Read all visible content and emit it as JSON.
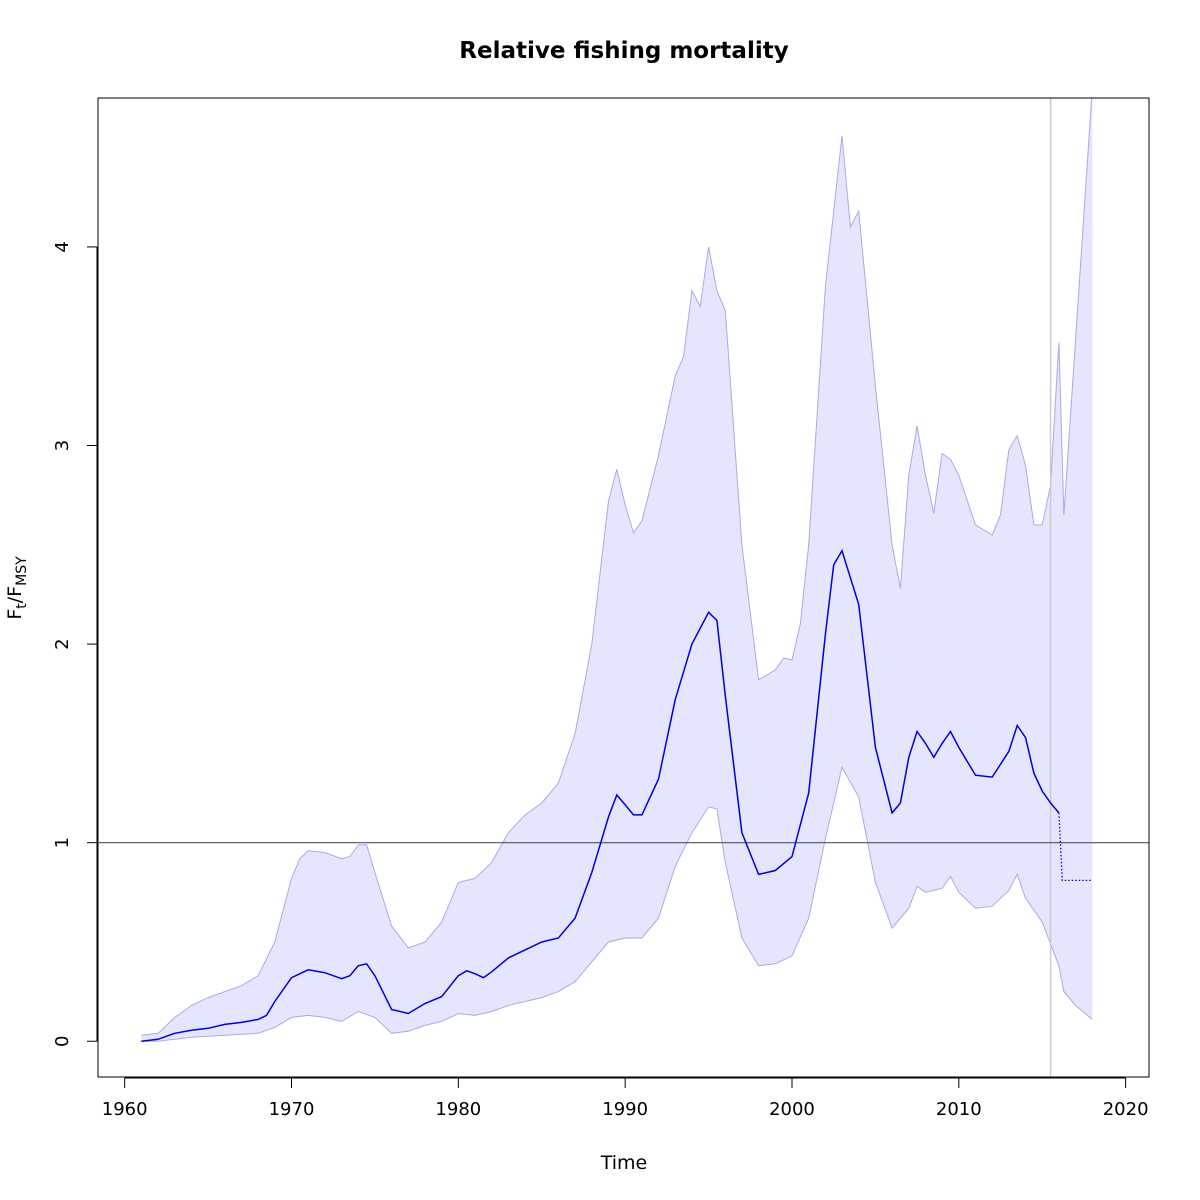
{
  "chart_data": {
    "type": "line",
    "title": "Relative fishing mortality",
    "xlabel": "Time",
    "ylabel": {
      "main": "F",
      "sub1": "t",
      "sep": "/F",
      "sub2": "MSY"
    },
    "xlim": [
      1958.4,
      2021.4
    ],
    "ylim": [
      -0.18,
      4.75
    ],
    "xticks": [
      1960,
      1970,
      1980,
      1990,
      2000,
      2010,
      2020
    ],
    "yticks": [
      0,
      1,
      2,
      3,
      4
    ],
    "reference_line_y": 1,
    "vertical_line_x": 2015.5,
    "colors": {
      "line": "#0000dd",
      "band": "#e5e5ff",
      "band_edge": "#a9a9e8",
      "ref_line": "#555555",
      "vline": "#cccccc"
    },
    "series": [
      {
        "type": "line",
        "points": [
          [
            1961,
            0.0
          ],
          [
            1962,
            0.01
          ],
          [
            1963,
            0.04
          ],
          [
            1964,
            0.055
          ],
          [
            1965,
            0.065
          ],
          [
            1966,
            0.085
          ],
          [
            1967,
            0.095
          ],
          [
            1968,
            0.11
          ],
          [
            1968.5,
            0.13
          ],
          [
            1969,
            0.2
          ],
          [
            1970,
            0.32
          ],
          [
            1971,
            0.36
          ],
          [
            1972,
            0.345
          ],
          [
            1973,
            0.315
          ],
          [
            1973.5,
            0.33
          ],
          [
            1974,
            0.38
          ],
          [
            1974.5,
            0.39
          ],
          [
            1975,
            0.33
          ],
          [
            1976,
            0.16
          ],
          [
            1977,
            0.14
          ],
          [
            1978,
            0.19
          ],
          [
            1979,
            0.225
          ],
          [
            1980,
            0.33
          ],
          [
            1980.5,
            0.355
          ],
          [
            1981,
            0.34
          ],
          [
            1981.5,
            0.32
          ],
          [
            1982,
            0.35
          ],
          [
            1983,
            0.42
          ],
          [
            1984,
            0.46
          ],
          [
            1985,
            0.5
          ],
          [
            1986,
            0.52
          ],
          [
            1987,
            0.62
          ],
          [
            1988,
            0.85
          ],
          [
            1989,
            1.13
          ],
          [
            1989.5,
            1.24
          ],
          [
            1990,
            1.19
          ],
          [
            1990.5,
            1.14
          ],
          [
            1991,
            1.14
          ],
          [
            1992,
            1.32
          ],
          [
            1993,
            1.72
          ],
          [
            1994,
            2.0
          ],
          [
            1995,
            2.16
          ],
          [
            1995.5,
            2.12
          ],
          [
            1996,
            1.74
          ],
          [
            1997,
            1.05
          ],
          [
            1998,
            0.84
          ],
          [
            1999,
            0.86
          ],
          [
            2000,
            0.93
          ],
          [
            2001,
            1.25
          ],
          [
            2002,
            2.05
          ],
          [
            2002.5,
            2.4
          ],
          [
            2003,
            2.47
          ],
          [
            2004,
            2.2
          ],
          [
            2005,
            1.48
          ],
          [
            2006,
            1.15
          ],
          [
            2006.5,
            1.2
          ],
          [
            2007,
            1.43
          ],
          [
            2007.5,
            1.56
          ],
          [
            2008,
            1.5
          ],
          [
            2008.5,
            1.43
          ],
          [
            2009,
            1.5
          ],
          [
            2009.5,
            1.56
          ],
          [
            2010,
            1.48
          ],
          [
            2011,
            1.34
          ],
          [
            2012,
            1.33
          ],
          [
            2013,
            1.46
          ],
          [
            2013.5,
            1.59
          ],
          [
            2014,
            1.53
          ],
          [
            2014.5,
            1.35
          ],
          [
            2015,
            1.26
          ],
          [
            2015.5,
            1.2
          ],
          [
            2016,
            1.15
          ]
        ]
      },
      {
        "type": "forecast_dotted",
        "points": [
          [
            2016,
            1.15
          ],
          [
            2016.2,
            0.81
          ],
          [
            2018,
            0.81
          ]
        ]
      },
      {
        "type": "band_upper",
        "points": [
          [
            1961,
            0.03
          ],
          [
            1962,
            0.04
          ],
          [
            1963,
            0.12
          ],
          [
            1964,
            0.18
          ],
          [
            1965,
            0.22
          ],
          [
            1966,
            0.25
          ],
          [
            1967,
            0.28
          ],
          [
            1968,
            0.33
          ],
          [
            1969,
            0.5
          ],
          [
            1970,
            0.82
          ],
          [
            1970.5,
            0.92
          ],
          [
            1971,
            0.96
          ],
          [
            1972,
            0.95
          ],
          [
            1973,
            0.92
          ],
          [
            1973.5,
            0.93
          ],
          [
            1974,
            0.99
          ],
          [
            1974.5,
            0.99
          ],
          [
            1975,
            0.85
          ],
          [
            1976,
            0.58
          ],
          [
            1977,
            0.47
          ],
          [
            1978,
            0.5
          ],
          [
            1979,
            0.6
          ],
          [
            1980,
            0.8
          ],
          [
            1981,
            0.82
          ],
          [
            1982,
            0.9
          ],
          [
            1983,
            1.05
          ],
          [
            1984,
            1.14
          ],
          [
            1985,
            1.2
          ],
          [
            1986,
            1.3
          ],
          [
            1987,
            1.55
          ],
          [
            1988,
            2.0
          ],
          [
            1989,
            2.72
          ],
          [
            1989.5,
            2.88
          ],
          [
            1990,
            2.7
          ],
          [
            1990.5,
            2.56
          ],
          [
            1991,
            2.62
          ],
          [
            1992,
            2.95
          ],
          [
            1993,
            3.35
          ],
          [
            1993.5,
            3.45
          ],
          [
            1994,
            3.78
          ],
          [
            1994.5,
            3.7
          ],
          [
            1995,
            4.0
          ],
          [
            1995.5,
            3.78
          ],
          [
            1996,
            3.68
          ],
          [
            1997,
            2.5
          ],
          [
            1998,
            1.82
          ],
          [
            1999,
            1.87
          ],
          [
            1999.5,
            1.93
          ],
          [
            2000,
            1.92
          ],
          [
            2000.5,
            2.1
          ],
          [
            2001,
            2.5
          ],
          [
            2002,
            3.8
          ],
          [
            2002.5,
            4.18
          ],
          [
            2003,
            4.56
          ],
          [
            2003.5,
            4.1
          ],
          [
            2004,
            4.18
          ],
          [
            2005,
            3.3
          ],
          [
            2006,
            2.5
          ],
          [
            2006.5,
            2.28
          ],
          [
            2007,
            2.85
          ],
          [
            2007.5,
            3.1
          ],
          [
            2008,
            2.85
          ],
          [
            2008.5,
            2.66
          ],
          [
            2009,
            2.96
          ],
          [
            2009.5,
            2.93
          ],
          [
            2010,
            2.85
          ],
          [
            2011,
            2.6
          ],
          [
            2012,
            2.55
          ],
          [
            2012.5,
            2.65
          ],
          [
            2013,
            2.98
          ],
          [
            2013.5,
            3.05
          ],
          [
            2014,
            2.9
          ],
          [
            2014.5,
            2.6
          ],
          [
            2015,
            2.6
          ],
          [
            2015.5,
            2.8
          ],
          [
            2016,
            3.52
          ],
          [
            2016.3,
            2.65
          ],
          [
            2018,
            4.8
          ]
        ]
      },
      {
        "type": "band_lower",
        "points": [
          [
            1961,
            0.0
          ],
          [
            1962,
            0.0
          ],
          [
            1963,
            0.01
          ],
          [
            1964,
            0.02
          ],
          [
            1965,
            0.025
          ],
          [
            1966,
            0.03
          ],
          [
            1967,
            0.035
          ],
          [
            1968,
            0.04
          ],
          [
            1969,
            0.07
          ],
          [
            1970,
            0.12
          ],
          [
            1971,
            0.13
          ],
          [
            1972,
            0.12
          ],
          [
            1973,
            0.1
          ],
          [
            1974,
            0.15
          ],
          [
            1975,
            0.12
          ],
          [
            1976,
            0.04
          ],
          [
            1977,
            0.05
          ],
          [
            1978,
            0.08
          ],
          [
            1979,
            0.1
          ],
          [
            1980,
            0.14
          ],
          [
            1981,
            0.13
          ],
          [
            1982,
            0.15
          ],
          [
            1983,
            0.18
          ],
          [
            1984,
            0.2
          ],
          [
            1985,
            0.22
          ],
          [
            1986,
            0.25
          ],
          [
            1987,
            0.3
          ],
          [
            1988,
            0.4
          ],
          [
            1989,
            0.5
          ],
          [
            1990,
            0.52
          ],
          [
            1991,
            0.52
          ],
          [
            1992,
            0.62
          ],
          [
            1993,
            0.88
          ],
          [
            1994,
            1.05
          ],
          [
            1995,
            1.18
          ],
          [
            1995.5,
            1.17
          ],
          [
            1996,
            0.9
          ],
          [
            1997,
            0.52
          ],
          [
            1998,
            0.38
          ],
          [
            1999,
            0.39
          ],
          [
            2000,
            0.43
          ],
          [
            2001,
            0.62
          ],
          [
            2002,
            1.02
          ],
          [
            2003,
            1.38
          ],
          [
            2004,
            1.23
          ],
          [
            2005,
            0.8
          ],
          [
            2006,
            0.57
          ],
          [
            2007,
            0.67
          ],
          [
            2007.5,
            0.78
          ],
          [
            2008,
            0.75
          ],
          [
            2009,
            0.77
          ],
          [
            2009.5,
            0.83
          ],
          [
            2010,
            0.75
          ],
          [
            2011,
            0.67
          ],
          [
            2012,
            0.68
          ],
          [
            2013,
            0.76
          ],
          [
            2013.5,
            0.84
          ],
          [
            2014,
            0.72
          ],
          [
            2015,
            0.6
          ],
          [
            2016,
            0.38
          ],
          [
            2016.3,
            0.25
          ],
          [
            2017,
            0.18
          ],
          [
            2018,
            0.11
          ]
        ]
      }
    ]
  }
}
